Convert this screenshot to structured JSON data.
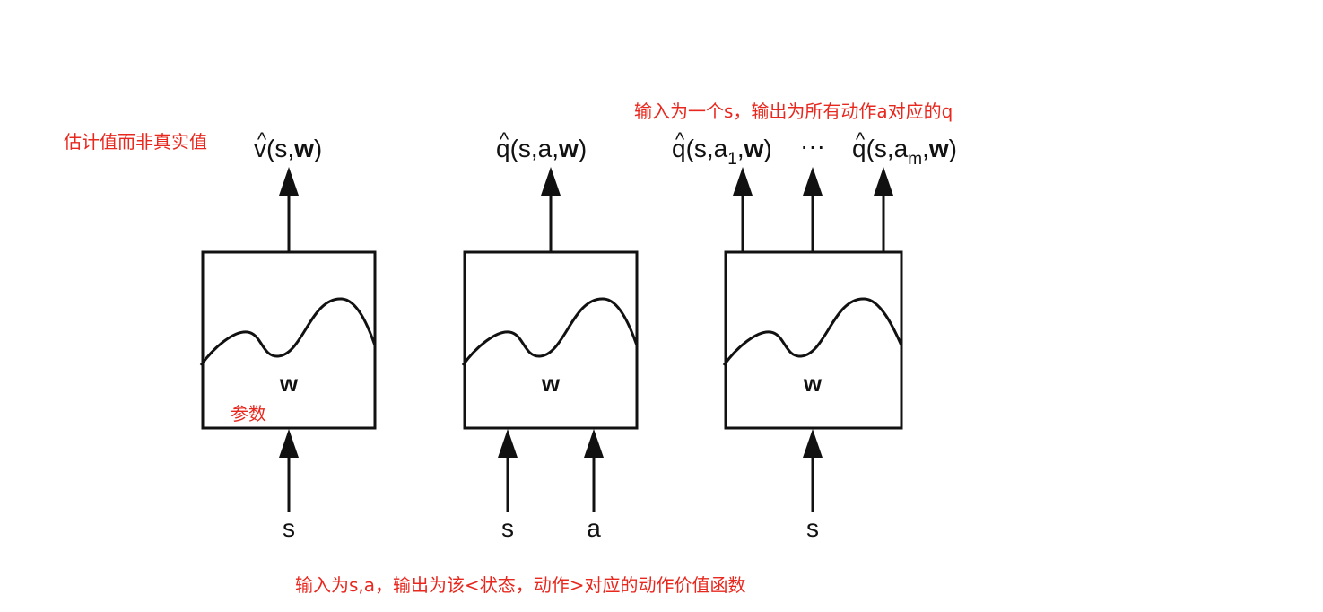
{
  "annotations": {
    "estimate_note": "估计值而非真实值",
    "params_note": "参数",
    "top_right_note": "输入为一个s，输出为所有动作a对应的q",
    "bottom_note": "输入为s,a，输出为该<状态，动作>对应的动作价值函数"
  },
  "network1": {
    "output_v": "v",
    "output_args_open": "(s,",
    "output_w": "w",
    "output_close": ")",
    "weight": "w",
    "input_s": "s"
  },
  "network2": {
    "output_q": "q",
    "output_args_open": "(s,a,",
    "output_w": "w",
    "output_close": ")",
    "weight": "w",
    "input_s": "s",
    "input_a": "a"
  },
  "network3": {
    "output1_q": "q",
    "output1_open": "(s,a",
    "output1_sub": "1",
    "output1_comma": ",",
    "output1_w": "w",
    "output1_close": ")",
    "ellipsis": "···",
    "output2_q": "q",
    "output2_open": "(s,a",
    "output2_sub": "m",
    "output2_comma": ",",
    "output2_w": "w",
    "output2_close": ")",
    "weight": "w",
    "input_s": "s"
  },
  "hat_symbol": "^"
}
